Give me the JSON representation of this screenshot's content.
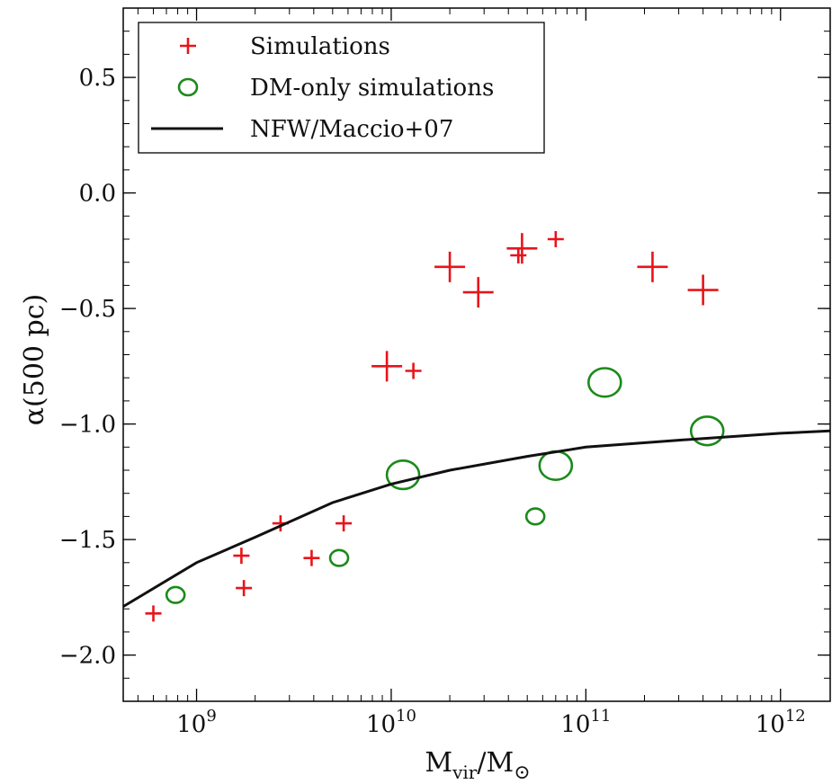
{
  "chart_data": {
    "type": "scatter",
    "xscale": "log",
    "xlim": [
      420000000.0,
      1800000000000.0
    ],
    "ylim": [
      -2.2,
      0.8
    ],
    "x_ticks": [
      {
        "value": 1000000000.0,
        "base": "10",
        "exp": "9"
      },
      {
        "value": 10000000000.0,
        "base": "10",
        "exp": "10"
      },
      {
        "value": 100000000000.0,
        "base": "10",
        "exp": "11"
      },
      {
        "value": 1000000000000.0,
        "base": "10",
        "exp": "12"
      }
    ],
    "y_ticks": [
      {
        "value": 0.5,
        "label": "0.5"
      },
      {
        "value": 0.0,
        "label": "0.0"
      },
      {
        "value": -0.5,
        "label": "−0.5"
      },
      {
        "value": -1.0,
        "label": "−1.0"
      },
      {
        "value": -1.5,
        "label": "−1.5"
      },
      {
        "value": -2.0,
        "label": "−2.0"
      }
    ],
    "xlabel_main": "M",
    "xlabel_sub": "vir",
    "xlabel_sep": "/M",
    "xlabel_sun": "⊙",
    "ylabel": "α(500 pc)",
    "grid": false,
    "legend_position": "top-left",
    "legend": [
      {
        "label": "Simulations",
        "marker": "plus",
        "color": "#e8141a"
      },
      {
        "label": "DM-only simulations",
        "marker": "circle",
        "color": "#1a8a1a"
      },
      {
        "label": "NFW/Maccio+07",
        "marker": "line",
        "color": "#111111"
      }
    ],
    "series": [
      {
        "name": "Simulations",
        "marker": "plus",
        "color": "#e8141a",
        "points": [
          {
            "x": 600000000.0,
            "y": -1.82,
            "size": "small"
          },
          {
            "x": 1700000000.0,
            "y": -1.57,
            "size": "small"
          },
          {
            "x": 1750000000.0,
            "y": -1.71,
            "size": "small"
          },
          {
            "x": 2700000000.0,
            "y": -1.43,
            "size": "small"
          },
          {
            "x": 3900000000.0,
            "y": -1.58,
            "size": "small"
          },
          {
            "x": 5700000000.0,
            "y": -1.43,
            "size": "small"
          },
          {
            "x": 9500000000.0,
            "y": -0.75,
            "size": "large"
          },
          {
            "x": 13000000000.0,
            "y": -0.77,
            "size": "small"
          },
          {
            "x": 20000000000.0,
            "y": -0.32,
            "size": "large"
          },
          {
            "x": 28000000000.0,
            "y": -0.43,
            "size": "large"
          },
          {
            "x": 45000000000.0,
            "y": -0.27,
            "size": "small"
          },
          {
            "x": 47000000000.0,
            "y": -0.24,
            "size": "large"
          },
          {
            "x": 70000000000.0,
            "y": -0.2,
            "size": "small"
          },
          {
            "x": 220000000000.0,
            "y": -0.32,
            "size": "large"
          },
          {
            "x": 400000000000.0,
            "y": -0.42,
            "size": "large"
          }
        ]
      },
      {
        "name": "DM-only simulations",
        "marker": "circle",
        "color": "#1a8a1a",
        "points": [
          {
            "x": 780000000.0,
            "y": -1.74,
            "size": "small"
          },
          {
            "x": 5400000000.0,
            "y": -1.58,
            "size": "small"
          },
          {
            "x": 11500000000.0,
            "y": -1.22,
            "size": "large"
          },
          {
            "x": 55000000000.0,
            "y": -1.4,
            "size": "small"
          },
          {
            "x": 70000000000.0,
            "y": -1.18,
            "size": "large"
          },
          {
            "x": 125000000000.0,
            "y": -0.82,
            "size": "large"
          },
          {
            "x": 420000000000.0,
            "y": -1.03,
            "size": "large"
          }
        ]
      },
      {
        "name": "NFW/Maccio+07",
        "marker": "line",
        "color": "#111111",
        "points": [
          {
            "x": 420000000.0,
            "y": -1.79
          },
          {
            "x": 1000000000.0,
            "y": -1.6
          },
          {
            "x": 2000000000.0,
            "y": -1.49
          },
          {
            "x": 5000000000.0,
            "y": -1.34
          },
          {
            "x": 10000000000.0,
            "y": -1.26
          },
          {
            "x": 20000000000.0,
            "y": -1.2
          },
          {
            "x": 50000000000.0,
            "y": -1.14
          },
          {
            "x": 100000000000.0,
            "y": -1.1
          },
          {
            "x": 300000000000.0,
            "y": -1.07
          },
          {
            "x": 1000000000000.0,
            "y": -1.04
          },
          {
            "x": 1800000000000.0,
            "y": -1.03
          }
        ]
      }
    ]
  }
}
